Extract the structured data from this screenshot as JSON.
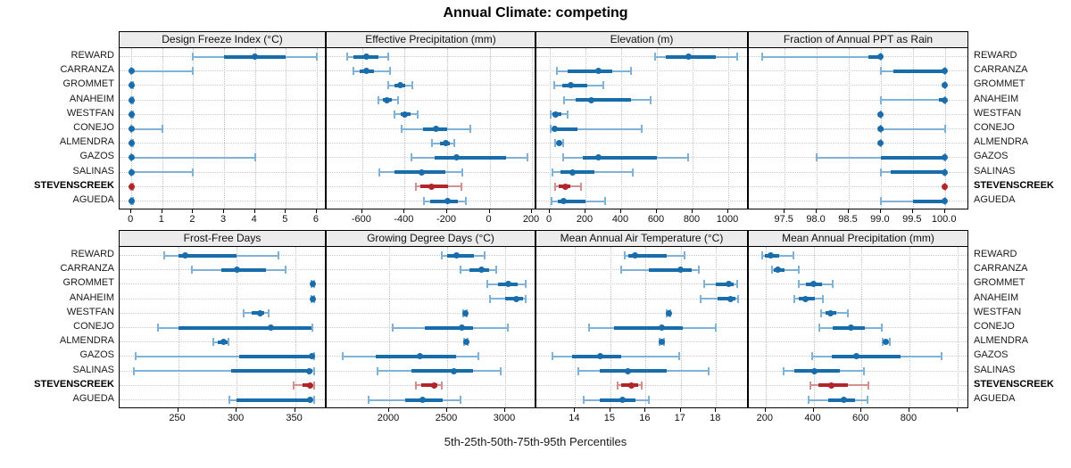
{
  "title": "Annual Climate: competing",
  "xlabel": "5th-25th-50th-75th-95th Percentiles",
  "sites": [
    "REWARD",
    "CARRANZA",
    "GROMMET",
    "ANAHEIM",
    "WESTFAN",
    "CONEJO",
    "ALMENDRA",
    "GAZOS",
    "SALINAS",
    "STEVENSCREEK",
    "AGUEDA"
  ],
  "highlight_site": "STEVENSCREEK",
  "percentile_levels": [
    5,
    25,
    50,
    75,
    95
  ],
  "colors": {
    "blue": "#1a6dab",
    "blue_light": "#7fb2d6",
    "red": "#b2252a",
    "red_light": "#d2908f",
    "header_bg": "#ececec",
    "grid": "#c9c9c9",
    "text": "#1a1a1a"
  },
  "chart_data": {
    "type": "dot-interval",
    "description": "Each row shows 5th-25th-50th-75th-95th percentiles per site; thin line = 5th-95th, thick bar = 25th-75th, dot = median. STEVENSCREEK highlighted in red.",
    "panels": [
      {
        "title": "Design Freeze Index (°C)",
        "xlim": [
          -0.38,
          6.32
        ],
        "tick_values": [
          0,
          1,
          2,
          3,
          4,
          5,
          6
        ],
        "tick_labels": [
          "0",
          "1",
          "2",
          "3",
          "4",
          "5",
          "6"
        ],
        "rows": [
          [
            2,
            3,
            4,
            5,
            6
          ],
          [
            0,
            0,
            0,
            0.05,
            2
          ],
          [
            0,
            0,
            0,
            0,
            0.05
          ],
          [
            0,
            0,
            0,
            0,
            0.05
          ],
          [
            0,
            0,
            0,
            0,
            0.05
          ],
          [
            0,
            0,
            0,
            0.05,
            1
          ],
          [
            0,
            0,
            0,
            0,
            0.05
          ],
          [
            0,
            0,
            0,
            0.05,
            4
          ],
          [
            0,
            0,
            0,
            0.05,
            2
          ],
          [
            0,
            0,
            0,
            0,
            0.05
          ],
          [
            0,
            0,
            0,
            0,
            0.05
          ]
        ]
      },
      {
        "title": "Effective Precipitation (mm)",
        "xlim": [
          -768,
          221
        ],
        "tick_values": [
          -600,
          -400,
          -200,
          0,
          200
        ],
        "tick_labels": [
          "-600",
          "-400",
          "-200",
          "0",
          "200"
        ],
        "rows": [
          [
            -670,
            -640,
            -580,
            -522,
            -478
          ],
          [
            -640,
            -612,
            -580,
            -545,
            -470
          ],
          [
            -476,
            -448,
            -420,
            -396,
            -366
          ],
          [
            -524,
            -504,
            -484,
            -462,
            -432
          ],
          [
            -448,
            -420,
            -398,
            -374,
            -338
          ],
          [
            -414,
            -312,
            -254,
            -200,
            -92
          ],
          [
            -270,
            -232,
            -208,
            -188,
            -168
          ],
          [
            -368,
            -258,
            -154,
            80,
            180
          ],
          [
            -518,
            -448,
            -318,
            -210,
            -130
          ],
          [
            -346,
            -328,
            -274,
            -196,
            -132
          ],
          [
            -310,
            -280,
            -198,
            -150,
            -112
          ]
        ]
      },
      {
        "title": "Elevation (m)",
        "xlim": [
          -75,
          1115
        ],
        "tick_values": [
          0,
          200,
          400,
          600,
          800,
          1000
        ],
        "tick_labels": [
          "0",
          "200",
          "400",
          "600",
          "800",
          "1000"
        ],
        "rows": [
          [
            590,
            650,
            775,
            930,
            1050
          ],
          [
            40,
            100,
            270,
            350,
            455
          ],
          [
            25,
            70,
            117,
            210,
            300
          ],
          [
            80,
            145,
            232,
            455,
            565
          ],
          [
            5,
            15,
            32,
            65,
            98
          ],
          [
            7,
            15,
            27,
            155,
            515
          ],
          [
            30,
            40,
            50,
            62,
            73
          ],
          [
            75,
            185,
            272,
            600,
            775
          ],
          [
            15,
            60,
            125,
            250,
            465
          ],
          [
            30,
            50,
            85,
            115,
            175
          ],
          [
            8,
            45,
            75,
            200,
            308
          ]
        ]
      },
      {
        "title": "Fraction of Annual PPT as Rain",
        "xlim": [
          96.94,
          100.38
        ],
        "tick_values": [
          97.5,
          98.0,
          98.5,
          99.0,
          99.5,
          100.0
        ],
        "tick_labels": [
          "97.5",
          "98.0",
          "98.5",
          "99.0",
          "99.5",
          "100.0"
        ],
        "rows": [
          [
            97.15,
            98.8,
            99,
            99,
            99
          ],
          [
            99,
            99.2,
            100,
            100,
            100
          ],
          [
            100,
            100,
            100,
            100,
            100
          ],
          [
            99,
            99.9,
            100,
            100,
            100
          ],
          [
            99,
            99,
            99,
            99,
            99
          ],
          [
            99,
            99,
            99,
            99.05,
            100
          ],
          [
            99,
            99,
            99,
            99,
            99
          ],
          [
            98,
            99,
            100,
            100,
            100
          ],
          [
            99,
            99.15,
            100,
            100,
            100
          ],
          [
            100,
            100,
            100,
            100,
            100
          ],
          [
            99,
            99.5,
            100,
            100,
            100
          ]
        ]
      },
      {
        "title": "Frost-Free Days",
        "xlim": [
          200,
          377
        ],
        "tick_values": [
          250,
          300,
          350
        ],
        "tick_labels": [
          "250",
          "300",
          "350"
        ],
        "rows": [
          [
            238,
            250,
            256,
            300,
            336
          ],
          [
            262,
            287,
            300,
            325,
            342
          ],
          [
            364,
            365,
            365,
            365,
            366
          ],
          [
            364,
            365,
            365,
            365,
            366
          ],
          [
            306,
            313,
            320,
            324,
            327
          ],
          [
            233,
            250,
            329,
            364,
            365
          ],
          [
            280,
            284,
            289,
            292,
            293
          ],
          [
            214,
            302,
            364,
            365,
            366
          ],
          [
            212,
            295,
            362,
            365,
            366
          ],
          [
            349,
            356,
            363,
            365,
            366
          ],
          [
            294,
            300,
            363,
            365,
            366
          ]
        ]
      },
      {
        "title": "Growing Degree Days (°C)",
        "xlim": [
          1462,
          3269
        ],
        "tick_values": [
          2000,
          2500,
          3000
        ],
        "tick_labels": [
          "2000",
          "2500",
          "3000"
        ],
        "rows": [
          [
            2450,
            2500,
            2580,
            2730,
            2820
          ],
          [
            2615,
            2690,
            2795,
            2860,
            2925
          ],
          [
            2845,
            2935,
            3030,
            3105,
            3180
          ],
          [
            2870,
            3000,
            3095,
            3155,
            3180
          ],
          [
            2640,
            2650,
            2655,
            2662,
            2670
          ],
          [
            2030,
            2310,
            2630,
            2720,
            3025
          ],
          [
            2648,
            2656,
            2662,
            2668,
            2676
          ],
          [
            1600,
            1885,
            2265,
            2575,
            2770
          ],
          [
            1900,
            2190,
            2560,
            2720,
            2960
          ],
          [
            2230,
            2280,
            2390,
            2415,
            2455
          ],
          [
            1820,
            2140,
            2290,
            2465,
            2615
          ]
        ]
      },
      {
        "title": "Mean Annual Air Temperature (°C)",
        "xlim": [
          12.9,
          18.93
        ],
        "tick_values": [
          14,
          15,
          16,
          17,
          18
        ],
        "tick_labels": [
          "14",
          "15",
          "16",
          "17",
          "18"
        ],
        "rows": [
          [
            15.4,
            15.5,
            15.7,
            16.6,
            17.1
          ],
          [
            15.3,
            16.1,
            17.0,
            17.3,
            17.5
          ],
          [
            17.65,
            18.0,
            18.35,
            18.5,
            18.6
          ],
          [
            17.55,
            18.05,
            18.4,
            18.55,
            18.62
          ],
          [
            16.6,
            16.62,
            16.65,
            16.68,
            16.7
          ],
          [
            14.4,
            15.1,
            16.45,
            17.05,
            18.0
          ],
          [
            16.4,
            16.44,
            16.47,
            16.5,
            16.53
          ],
          [
            13.35,
            13.9,
            14.7,
            15.3,
            16.95
          ],
          [
            14.1,
            14.7,
            15.5,
            16.6,
            17.8
          ],
          [
            15.2,
            15.3,
            15.6,
            15.8,
            15.9
          ],
          [
            14.25,
            14.7,
            15.35,
            15.7,
            16.1
          ]
        ]
      },
      {
        "title": "Mean Annual Precipitation (mm)",
        "xlim": [
          130,
          1050
        ],
        "tick_values": [
          200,
          400,
          600,
          800,
          1000
        ],
        "tick_labels": [
          "200",
          "400",
          "600",
          "800",
          ""
        ],
        "rows": [
          [
            185,
            195,
            220,
            255,
            315
          ],
          [
            225,
            235,
            250,
            280,
            340
          ],
          [
            340,
            370,
            400,
            435,
            480
          ],
          [
            320,
            340,
            365,
            405,
            440
          ],
          [
            430,
            450,
            470,
            495,
            545
          ],
          [
            425,
            480,
            555,
            615,
            685
          ],
          [
            690,
            696,
            703,
            712,
            720
          ],
          [
            395,
            475,
            578,
            765,
            935
          ],
          [
            275,
            320,
            405,
            510,
            610
          ],
          [
            385,
            420,
            475,
            545,
            630
          ],
          [
            380,
            460,
            525,
            575,
            625
          ]
        ]
      }
    ]
  }
}
